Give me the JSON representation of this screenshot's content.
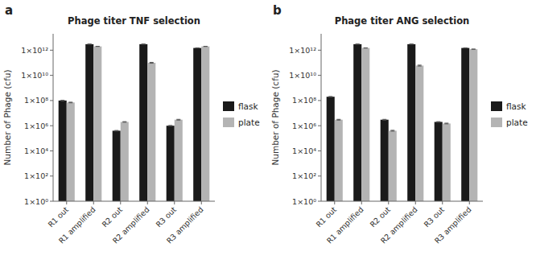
{
  "chart_data": [
    {
      "type": "bar",
      "title": "Phage titer TNF selection",
      "y_label": "Number of Phage (cfu)",
      "annotations": [
        "a"
      ],
      "categories": [
        "R1 out",
        "R1 amplified",
        "R2 out",
        "R2 amplified",
        "R3 out",
        "R3 amplified"
      ],
      "series": [
        {
          "name": "flask",
          "color": "#1a1a1a",
          "values": [
            100000000.0,
            3000000000000.0,
            400000.0,
            3000000000000.0,
            1000000.0,
            1500000000000.0
          ],
          "errors": [
            5000000.0,
            50000000000.0,
            20000.0,
            40000000000.0,
            50000.0,
            30000000000.0
          ]
        },
        {
          "name": "plate",
          "color": "#b4b4b4",
          "values": [
            70000000.0,
            2000000000000.0,
            2000000.0,
            100000000000.0,
            3000000.0,
            2000000000000.0
          ],
          "errors": [
            4000000.0,
            40000000000.0,
            100000.0,
            8000000000.0,
            200000.0,
            40000000000.0
          ]
        }
      ],
      "log": "y",
      "ylim": [
        1,
        20000000000000.0
      ],
      "yticks": [
        {
          "value": 1,
          "label": "1×10⁰"
        },
        {
          "value": 100,
          "label": "1×10²"
        },
        {
          "value": 10000,
          "label": "1×10⁴"
        },
        {
          "value": 1000000,
          "label": "1×10⁶"
        },
        {
          "value": 100000000,
          "label": "1×10⁸"
        },
        {
          "value": 10000000000,
          "label": "1×10¹⁰"
        },
        {
          "value": 1000000000000,
          "label": "1×10¹²"
        }
      ],
      "grid": false,
      "legend": "right"
    },
    {
      "type": "bar",
      "title": "Phage titer ANG selection",
      "y_label": "Number of Phage (cfu)",
      "annotations": [
        "b"
      ],
      "categories": [
        "R1 out",
        "R1 amplified",
        "R2 out",
        "R2 amplified",
        "R3 out",
        "R3 amplified"
      ],
      "series": [
        {
          "name": "flask",
          "color": "#1a1a1a",
          "values": [
            200000000.0,
            3000000000000.0,
            3000000.0,
            3000000000000.0,
            2000000.0,
            1500000000000.0
          ],
          "errors": [
            10000000.0,
            50000000000.0,
            200000.0,
            40000000000.0,
            100000.0,
            30000000000.0
          ]
        },
        {
          "name": "plate",
          "color": "#b4b4b4",
          "values": [
            3000000.0,
            1500000000000.0,
            400000.0,
            60000000000.0,
            1500000.0,
            1200000000000.0
          ],
          "errors": [
            200000.0,
            30000000000.0,
            30000.0,
            5000000000.0,
            100000.0,
            20000000000.0
          ]
        }
      ],
      "log": "y",
      "ylim": [
        1,
        20000000000000.0
      ],
      "yticks": [
        {
          "value": 1,
          "label": "1×10⁰"
        },
        {
          "value": 100,
          "label": "1×10²"
        },
        {
          "value": 10000,
          "label": "1×10⁴"
        },
        {
          "value": 1000000,
          "label": "1×10⁶"
        },
        {
          "value": 100000000,
          "label": "1×10⁸"
        },
        {
          "value": 10000000000,
          "label": "1×10¹⁰"
        },
        {
          "value": 1000000000000,
          "label": "1×10¹²"
        }
      ],
      "grid": false,
      "legend": "right"
    }
  ]
}
